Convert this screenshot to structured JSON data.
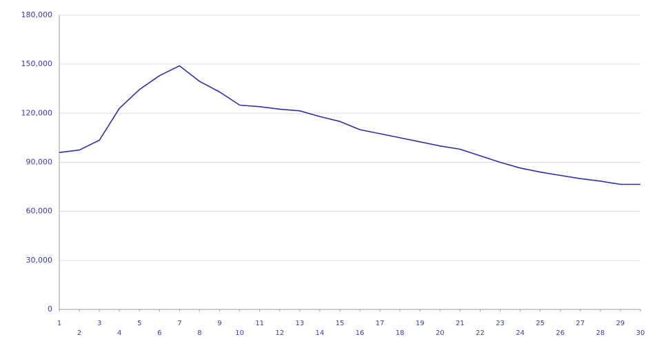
{
  "chart_data": {
    "type": "line",
    "x": [
      1,
      2,
      3,
      4,
      5,
      6,
      7,
      8,
      9,
      10,
      11,
      12,
      13,
      14,
      15,
      16,
      17,
      18,
      19,
      20,
      21,
      22,
      23,
      24,
      25,
      26,
      27,
      28,
      29,
      30
    ],
    "series": [
      {
        "color": "#2e2ea0",
        "values": [
          96000,
          97500,
          103500,
          123000,
          134500,
          143000,
          149000,
          139500,
          133000,
          125000,
          124000,
          122500,
          121500,
          118000,
          115000,
          110000,
          107500,
          105000,
          102500,
          100000,
          98000,
          94000,
          90000,
          86500,
          84000,
          82000,
          80000,
          78500,
          76500,
          76500
        ]
      }
    ],
    "xlim": [
      1,
      30
    ],
    "xticks": [
      1,
      2,
      3,
      4,
      5,
      6,
      7,
      8,
      9,
      10,
      11,
      12,
      13,
      14,
      15,
      16,
      17,
      18,
      19,
      20,
      21,
      22,
      23,
      24,
      25,
      26,
      27,
      28,
      29,
      30
    ],
    "ylim": [
      0,
      180000
    ],
    "yticks": [
      0,
      {
        "value": 30000,
        "label": "30,000"
      },
      {
        "value": 60000,
        "label": "60,000"
      },
      {
        "value": 90000,
        "label": "90,000"
      },
      {
        "value": 120000,
        "label": "120,000"
      },
      {
        "value": 150000,
        "label": "150,000"
      },
      {
        "value": 180000,
        "label": "180,000"
      }
    ],
    "grid": true
  }
}
